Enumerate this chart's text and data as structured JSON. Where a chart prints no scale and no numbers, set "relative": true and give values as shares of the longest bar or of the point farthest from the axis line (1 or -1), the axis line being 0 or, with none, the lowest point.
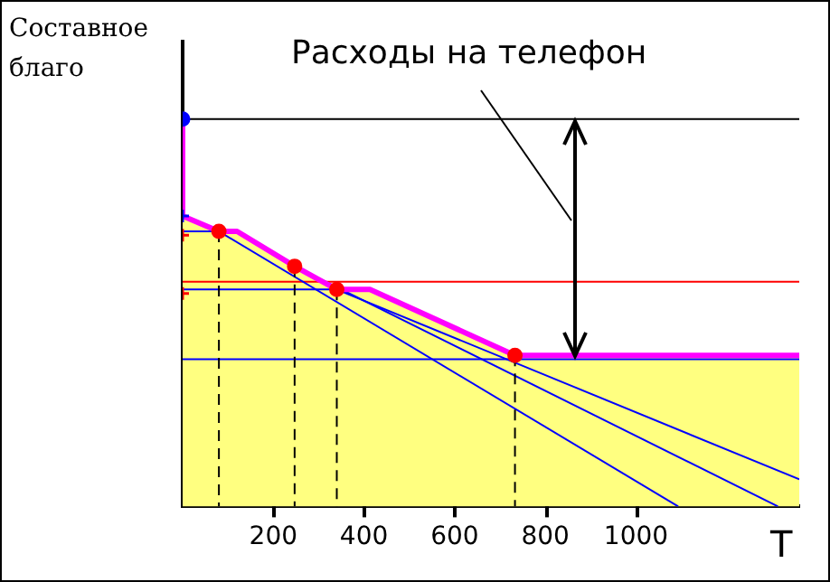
{
  "chart_data": {
    "type": "line",
    "relative": true,
    "ylabel": "Составное благо",
    "xlabel": "T",
    "annotations": [
      "Расходы на телефон"
    ],
    "xlim": [
      0,
      1360
    ],
    "xticks": [
      200,
      400,
      600,
      800,
      1000
    ],
    "grid": false,
    "legend": false,
    "series": [
      {
        "type": "area",
        "color": "#ffff80",
        "x": [
          0,
          0,
          80,
          120,
          247,
          340,
          413,
          733,
          1360
        ],
        "values": [
          1,
          0.75,
          0.71,
          0.71,
          0.62,
          0.56,
          0.56,
          0.39,
          0.39
        ]
      },
      {
        "type": "line",
        "color": "#000000",
        "x": [
          0,
          1360
        ],
        "values": [
          1,
          1
        ]
      },
      {
        "type": "line",
        "color": "#ff0000",
        "x": [
          0,
          1360
        ],
        "values": [
          0.58,
          0.58
        ]
      },
      {
        "type": "line",
        "color": "#0000ff",
        "x": [
          0,
          1360
        ],
        "values": [
          0.38,
          0.38
        ]
      },
      {
        "type": "line",
        "color": "#0000ff",
        "x": [
          0,
          80
        ],
        "values": [
          0.71,
          0.71
        ]
      },
      {
        "type": "line",
        "color": "#0000ff",
        "x": [
          0,
          340
        ],
        "values": [
          0.56,
          0.56
        ]
      },
      {
        "type": "line",
        "color": "#0000ff",
        "x": [
          80,
          1093
        ],
        "values": [
          0.71,
          0
        ]
      },
      {
        "type": "line",
        "color": "#0000ff",
        "x": [
          247,
          1313
        ],
        "values": [
          0.62,
          0
        ]
      },
      {
        "type": "line",
        "color": "#0000ff",
        "x": [
          340,
          1360
        ],
        "values": [
          0.56,
          0.07
        ]
      },
      {
        "type": "line",
        "color": "#000000",
        "line_style": "dashed",
        "x": [
          80,
          80
        ],
        "values": [
          0.71,
          0
        ]
      },
      {
        "type": "line",
        "color": "#000000",
        "line_style": "dashed",
        "x": [
          247,
          247
        ],
        "values": [
          0.62,
          0
        ]
      },
      {
        "type": "line",
        "color": "#000000",
        "line_style": "dashed",
        "x": [
          340,
          340
        ],
        "values": [
          0.56,
          0
        ]
      },
      {
        "type": "line",
        "color": "#000000",
        "line_style": "dashed",
        "x": [
          733,
          733
        ],
        "values": [
          0.39,
          0
        ]
      },
      {
        "type": "line",
        "color": "#ff00ff",
        "x": [
          0,
          0,
          80,
          120,
          247,
          340,
          413,
          733,
          1360
        ],
        "values": [
          1,
          0.75,
          0.71,
          0.71,
          0.62,
          0.56,
          0.56,
          0.39,
          0.39
        ]
      },
      {
        "type": "scatter",
        "color": "#ff0000",
        "marker": "cross",
        "x": [
          0,
          0
        ],
        "values": [
          0.7,
          0.55
        ]
      },
      {
        "type": "scatter",
        "color": "#ff0000",
        "marker": "circle",
        "x": [
          80,
          247,
          340,
          733
        ],
        "values": [
          0.71,
          0.62,
          0.56,
          0.39
        ]
      },
      {
        "type": "scatter",
        "color": "#0000ff",
        "marker": "circle",
        "x": [
          0
        ],
        "values": [
          1
        ]
      },
      {
        "type": "scatter",
        "color": "#0000ff",
        "marker": "cross",
        "x": [
          0
        ],
        "values": [
          0.75
        ]
      }
    ]
  }
}
